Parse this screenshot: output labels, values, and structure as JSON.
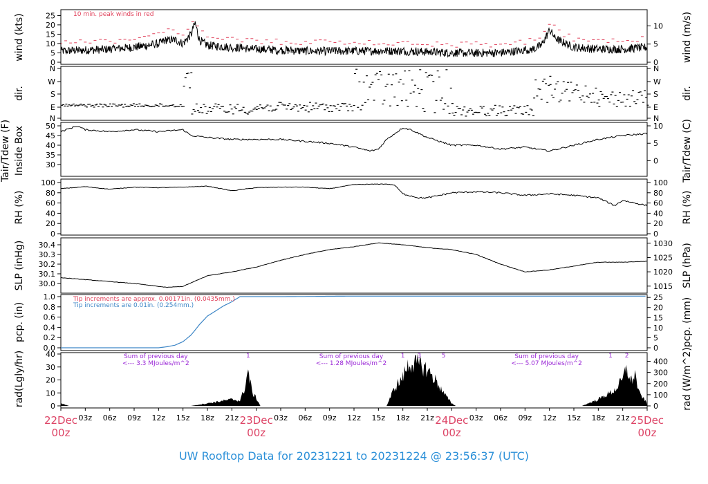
{
  "colors": {
    "frame": "#000000",
    "trace": "#000000",
    "peak": "#e0405a",
    "precip": "#3d86c6",
    "rad_note": "#9a27d6",
    "date": "#dd4466",
    "footer": "#2a8fd8"
  },
  "panels": {
    "wind": {
      "ylabel_left": "wind (kts)",
      "ylabel_right": "wind (m/s)",
      "left_ticks": [
        0,
        5,
        10,
        15,
        20,
        25
      ],
      "right_ticks": [
        0,
        5,
        10
      ],
      "note": "10 min. peak winds in red"
    },
    "dir": {
      "ylabel_left": "dir.",
      "ylabel_right": "dir.",
      "ticks": [
        "N",
        "W",
        "S",
        "E",
        "N"
      ]
    },
    "temp": {
      "ylabel_left_1": "Tair/Tdew (F)",
      "ylabel_left_2": "Inside Box",
      "ylabel_right": "Tair/Tdew (C)",
      "left_ticks": [
        30,
        35,
        40,
        45,
        50
      ],
      "right_ticks": [
        0,
        5,
        10
      ]
    },
    "rh": {
      "ylabel_left": "RH (%)",
      "ylabel_right": "RH (%)",
      "ticks": [
        0,
        20,
        40,
        60,
        80,
        100
      ]
    },
    "slp": {
      "ylabel_left": "SLP (inHg)",
      "ylabel_right": "SLP (hPa)",
      "left_ticks": [
        "30.0",
        "30.1",
        "30.2",
        "30.3",
        "30.4"
      ],
      "right_ticks": [
        1015,
        1020,
        1025,
        1030
      ]
    },
    "pcp": {
      "ylabel_left": "pcp. (in)",
      "ylabel_right": "pcp. (mm)",
      "left_ticks": [
        "0.0",
        "0.2",
        "0.4",
        "0.6",
        "0.8",
        "1.0"
      ],
      "right_ticks": [
        0,
        5,
        10,
        15,
        20,
        25
      ],
      "note1": "Tip increments are approx. 0.00171in. (0.0435mm.)",
      "note2": "Tip increments are 0.01in. (0.254mm.)"
    },
    "rad": {
      "ylabel_left": "rad(Lgly/hr)",
      "ylabel_right": "rad (W/m^2)",
      "left_ticks": [
        0,
        10,
        20,
        30,
        40
      ],
      "right_ticks": [
        0,
        100,
        200,
        300,
        400
      ],
      "sums": [
        {
          "line1": "Sum of previous day",
          "line2": "<--- 3.3 MJoules/m^2"
        },
        {
          "line1": "Sum of previous day",
          "line2": "<--- 1.28 MJoules/m^2"
        },
        {
          "line1": "Sum of previous day",
          "line2": "<--- 5.07 MJoules/m^2"
        }
      ],
      "markers": [
        "1",
        "1",
        "3",
        "5",
        "1",
        "2"
      ]
    }
  },
  "x_axis": {
    "hour_labels": [
      "03z",
      "06z",
      "09z",
      "12z",
      "15z",
      "18z",
      "21z",
      "03z",
      "06z",
      "09z",
      "12z",
      "15z",
      "18z",
      "21z",
      "03z",
      "06z",
      "09z",
      "12z",
      "15z",
      "18z",
      "21z"
    ],
    "day_labels": [
      {
        "date": "22Dec",
        "time": "00z"
      },
      {
        "date": "23Dec",
        "time": "00z"
      },
      {
        "date": "24Dec",
        "time": "00z"
      },
      {
        "date": "25Dec",
        "time": "00z"
      }
    ]
  },
  "footer": "UW Rooftop Data for 20231221  to  20231224 @ 23:56:37  (UTC)",
  "chart_data": [
    {
      "type": "line",
      "title": "10 min. peak winds in red",
      "ylabel": "wind (kts)",
      "x_units": "hours since 22Dec 00z",
      "ylim": [
        0,
        27
      ],
      "series": [
        {
          "values_x": [
            0,
            6,
            9,
            12,
            13,
            14,
            15,
            16,
            16.5,
            17,
            18,
            21,
            24,
            30,
            36,
            42,
            48,
            54,
            58,
            59,
            60,
            61,
            62,
            63,
            66,
            69,
            72
          ],
          "values_y": [
            6,
            7,
            8,
            10,
            12,
            12,
            10,
            15,
            21,
            12,
            9,
            8,
            7,
            6,
            6,
            6,
            5,
            5,
            7,
            9,
            17,
            12,
            10,
            8,
            7,
            7,
            8
          ]
        }
      ]
    },
    {
      "type": "scatter",
      "ylabel": "dir.",
      "x_units": "hours since 22Dec 00z",
      "categories": [
        "N",
        "E",
        "S",
        "W",
        "N"
      ]
    },
    {
      "type": "line",
      "ylabel": "Tair/Tdew (F)",
      "x_units": "hours since 22Dec 00z",
      "ylim": [
        25,
        50
      ],
      "series": [
        {
          "values_x": [
            0,
            2,
            3,
            6,
            9,
            12,
            15,
            16,
            18,
            21,
            24,
            27,
            30,
            33,
            36,
            38,
            39,
            40,
            41,
            42,
            43,
            44,
            45,
            48,
            51,
            54,
            57,
            60,
            63,
            66,
            69,
            72
          ],
          "values_y": [
            47,
            50,
            48,
            47,
            48,
            47,
            48,
            45,
            44,
            43,
            43,
            43,
            42,
            41,
            39,
            37,
            38,
            43,
            46,
            49,
            48,
            46,
            44,
            40,
            40,
            38,
            39,
            37,
            40,
            43,
            45,
            46
          ]
        }
      ]
    },
    {
      "type": "line",
      "ylabel": "RH (%)",
      "x_units": "hours since 22Dec 00z",
      "ylim": [
        0,
        100
      ],
      "series": [
        {
          "values_x": [
            0,
            3,
            6,
            9,
            12,
            15,
            18,
            21,
            24,
            27,
            30,
            33,
            36,
            39,
            40,
            41,
            42,
            44,
            45,
            48,
            51,
            54,
            57,
            60,
            63,
            66,
            68,
            69,
            72
          ],
          "values_y": [
            88,
            92,
            87,
            91,
            90,
            91,
            93,
            84,
            90,
            91,
            91,
            88,
            96,
            97,
            97,
            95,
            78,
            70,
            70,
            80,
            82,
            80,
            75,
            78,
            75,
            70,
            55,
            65,
            55
          ]
        }
      ]
    },
    {
      "type": "line",
      "ylabel": "SLP (inHg)",
      "x_units": "hours since 22Dec 00z",
      "ylim": [
        29.93,
        30.46
      ],
      "series": [
        {
          "values_x": [
            0,
            3,
            6,
            9,
            12,
            13,
            15,
            18,
            21,
            24,
            27,
            30,
            33,
            36,
            39,
            42,
            45,
            48,
            51,
            54,
            57,
            60,
            63,
            66,
            69,
            72
          ],
          "values_y": [
            30.06,
            30.04,
            30.02,
            30.0,
            29.97,
            29.96,
            29.97,
            30.08,
            30.12,
            30.17,
            30.24,
            30.3,
            30.35,
            30.38,
            30.42,
            30.4,
            30.37,
            30.35,
            30.3,
            30.2,
            30.12,
            30.14,
            30.18,
            30.22,
            30.22,
            30.23
          ]
        }
      ]
    },
    {
      "type": "line",
      "ylabel": "pcp. (in)",
      "x_units": "hours since 22Dec 00z",
      "ylim": [
        0,
        1.0
      ],
      "series": [
        {
          "values_x": [
            0,
            12,
            13,
            14,
            15,
            16,
            17,
            18,
            19,
            20,
            21,
            22,
            24,
            27,
            36,
            48,
            60,
            72
          ],
          "values_y": [
            0,
            0,
            0.02,
            0.05,
            0.12,
            0.25,
            0.45,
            0.62,
            0.72,
            0.82,
            0.9,
            1.0,
            1.0,
            1.0,
            1.01,
            1.01,
            1.01,
            1.01
          ]
        }
      ]
    },
    {
      "type": "area",
      "ylabel": "rad(Lgly/hr)",
      "x_units": "hours since 22Dec 00z",
      "ylim": [
        0,
        40
      ],
      "series": [
        {
          "values_x": [
            0,
            0.5,
            1,
            16,
            18,
            20,
            21,
            22,
            22.5,
            23,
            23.5,
            24,
            24.5,
            40,
            41,
            42,
            42.5,
            43,
            44,
            45,
            46,
            47,
            48,
            48.5,
            64,
            66,
            68,
            69,
            69.5,
            70,
            70.5,
            71,
            72
          ],
          "values_y": [
            2,
            1,
            0,
            0,
            2,
            4,
            5,
            4,
            12,
            27,
            10,
            6,
            0,
            0,
            14,
            22,
            30,
            33,
            32,
            28,
            20,
            10,
            2,
            0,
            0,
            5,
            12,
            20,
            30,
            18,
            25,
            10,
            2
          ]
        }
      ]
    }
  ]
}
